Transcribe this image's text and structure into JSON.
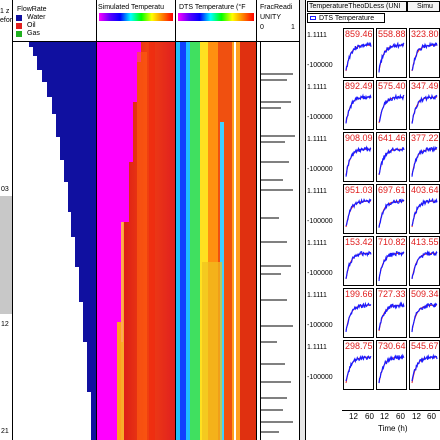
{
  "depth_track": {
    "header_lines": [
      "1 z",
      "efore"
    ],
    "tick_labels": [
      "03",
      "12",
      "21"
    ]
  },
  "flowrate_track": {
    "title": "FlowRate",
    "legend": [
      {
        "label": "Water",
        "color": "#1010a0"
      },
      {
        "label": "Oil",
        "color": "#e02020"
      },
      {
        "label": "Gas",
        "color": "#20b020"
      }
    ]
  },
  "simulated_track": {
    "title": "Simulated Temperatu"
  },
  "dts_track": {
    "title": "DTS Temperature (°F"
  },
  "fracread_track": {
    "title": "FracReadi",
    "unit": "UNITY",
    "scale_min": "0",
    "scale_max": "1"
  },
  "right_panel": {
    "tab1": "TemperatureTheoDLess (UNI",
    "tab2": "Simu",
    "legend": "DTS Temperature",
    "y_top": "1.1111",
    "y_bottom": "-100000",
    "x_ticks": [
      "12",
      "60",
      "12",
      "60",
      "12",
      "60"
    ],
    "x_label": "Time (h)",
    "cells": [
      [
        "859.46",
        "558.88",
        "323.80"
      ],
      [
        "892.49",
        "575.40",
        "347.49"
      ],
      [
        "908.09",
        "641.46",
        "377.22"
      ],
      [
        "951.03",
        "697.61",
        "403.64"
      ],
      [
        "153.42",
        "710.82",
        "413.55"
      ],
      [
        "199.66",
        "727.33",
        "509.34"
      ],
      [
        "298.75",
        "730.64",
        "545.67"
      ]
    ]
  }
}
